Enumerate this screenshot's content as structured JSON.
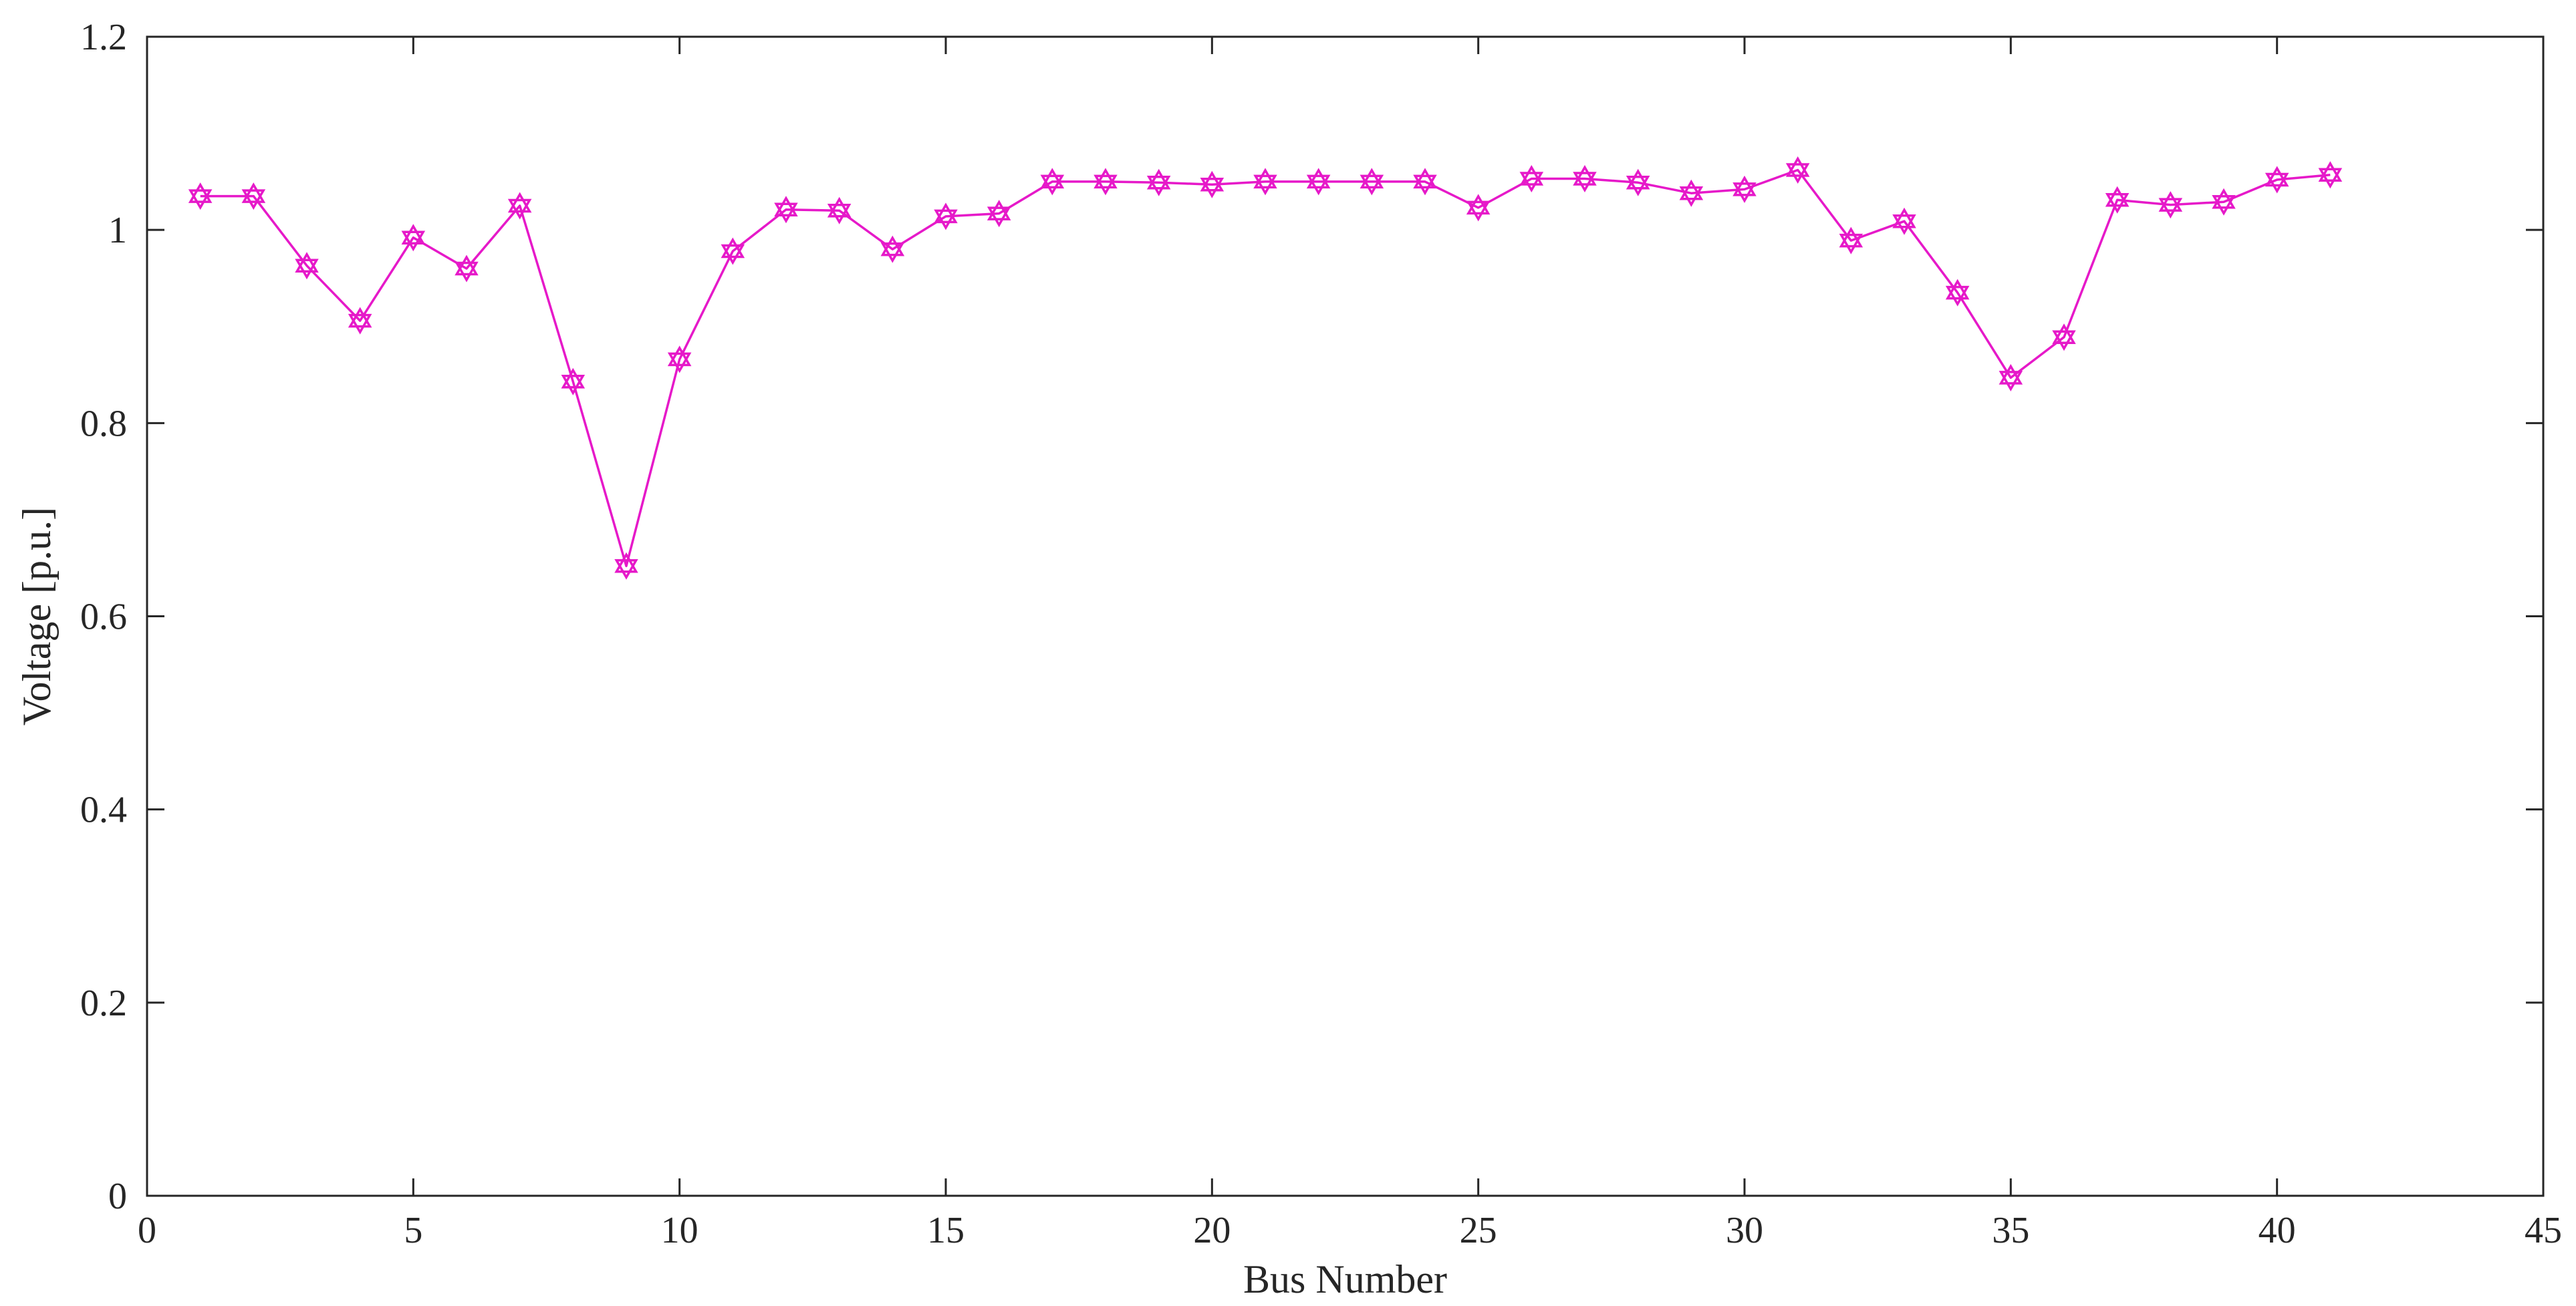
{
  "chart_data": {
    "type": "line",
    "title": "",
    "xlabel": "Bus Number",
    "ylabel": "Voltage [p.u.]",
    "xlim": [
      0,
      45
    ],
    "ylim": [
      0,
      1.2
    ],
    "xticks": [
      0,
      5,
      10,
      15,
      20,
      25,
      30,
      35,
      40,
      45
    ],
    "xtick_labels": [
      "0",
      "5",
      "10",
      "15",
      "20",
      "25",
      "30",
      "35",
      "40",
      "45"
    ],
    "yticks": [
      0,
      0.2,
      0.4,
      0.6,
      0.8,
      1,
      1.2
    ],
    "ytick_labels": [
      "0",
      "0.2",
      "0.4",
      "0.6",
      "0.8",
      "1",
      "1.2"
    ],
    "grid": false,
    "legend": "none",
    "marker": "hexagram",
    "series": [
      {
        "color": "#e619c9",
        "x": [
          1,
          2,
          3,
          4,
          5,
          6,
          7,
          8,
          9,
          10,
          11,
          12,
          13,
          14,
          15,
          16,
          17,
          18,
          19,
          20,
          21,
          22,
          23,
          24,
          25,
          26,
          27,
          28,
          29,
          30,
          31,
          32,
          33,
          34,
          35,
          36,
          37,
          38,
          39,
          40,
          41
        ],
        "y": [
          1.035,
          1.035,
          0.963,
          0.906,
          0.992,
          0.96,
          1.025,
          0.843,
          0.652,
          0.866,
          0.978,
          1.021,
          1.02,
          0.98,
          1.014,
          1.017,
          1.05,
          1.05,
          1.049,
          1.047,
          1.05,
          1.05,
          1.05,
          1.05,
          1.023,
          1.053,
          1.053,
          1.049,
          1.038,
          1.042,
          1.062,
          0.989,
          1.009,
          0.935,
          0.847,
          0.889,
          1.031,
          1.026,
          1.029,
          1.052,
          1.057
        ]
      }
    ]
  }
}
